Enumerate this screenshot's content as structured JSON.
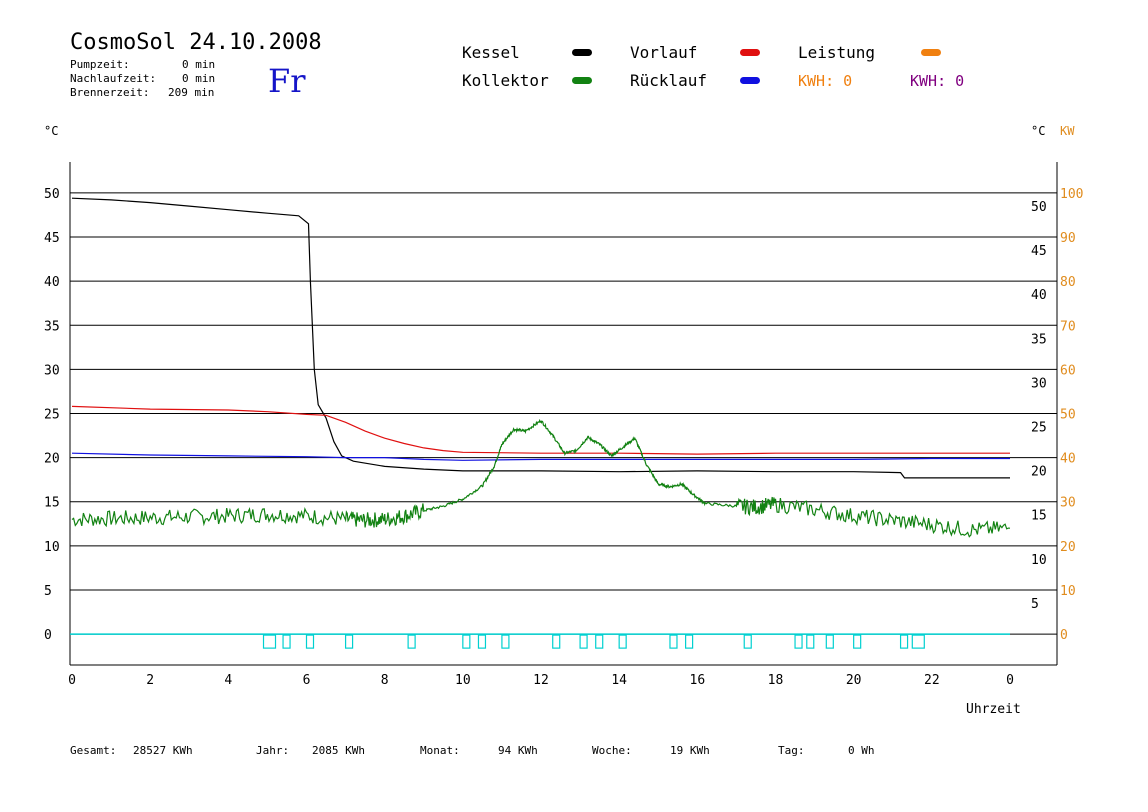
{
  "header": {
    "title": "CosmoSol 24.10.2008",
    "pump_label": "Pumpzeit:",
    "pump_value": "0 min",
    "nachlauf_label": "Nachlaufzeit:",
    "nachlauf_value": "0 min",
    "brenner_label": "Brennerzeit:",
    "brenner_value": "209 min",
    "weekday": "Fr"
  },
  "legend": {
    "kessel": "Kessel",
    "kollektor": "Kollektor",
    "vorlauf": "Vorlauf",
    "ruecklauf": "Rücklauf",
    "leistung": "Leistung",
    "kwh_a": "KWH: 0",
    "kwh_b": "KWH: 0"
  },
  "colors": {
    "kessel": "#000000",
    "vorlauf": "#e01010",
    "kollektor": "#128212",
    "ruecklauf": "#1010e0",
    "leistung": "#f08010",
    "kwh_b": "#800080",
    "pump": "#00d0d0",
    "kw_axis": "#e08c1e"
  },
  "footer": {
    "gesamt_label": "Gesamt:",
    "gesamt_value": "28527 KWh",
    "jahr_label": "Jahr:",
    "jahr_value": "2085 KWh",
    "monat_label": "Monat:",
    "monat_value": "94 KWh",
    "woche_label": "Woche:",
    "woche_value": "19 KWh",
    "tag_label": "Tag:",
    "tag_value": "0 Wh"
  },
  "chart_data": {
    "type": "line",
    "ylabel_left": "°C",
    "ylabel_right": "°C",
    "ylabel_right2": "KW",
    "xlabel": "Uhrzeit",
    "xlim": [
      0,
      24
    ],
    "ylim": [
      -3.5,
      53.5
    ],
    "y2lim": [
      -7,
      107
    ],
    "x_ticks": [
      "0",
      "2",
      "4",
      "6",
      "8",
      "10",
      "12",
      "14",
      "16",
      "18",
      "20",
      "22",
      "0"
    ],
    "y_ticks_left": [
      "50",
      "45",
      "40",
      "35",
      "30",
      "25",
      "20",
      "15",
      "10",
      "5",
      "0"
    ],
    "y_ticks_right": [
      "50",
      "45",
      "40",
      "35",
      "30",
      "25",
      "20",
      "15",
      "10",
      "5"
    ],
    "y_ticks_kw": [
      "100",
      "90",
      "80",
      "70",
      "60",
      "50",
      "40",
      "30",
      "20",
      "10",
      "0"
    ],
    "grid": true,
    "series": [
      {
        "name": "Kessel",
        "color": "#000000",
        "x": [
          0,
          1,
          2,
          3,
          4,
          5,
          5.8,
          6.05,
          6.1,
          6.2,
          6.3,
          6.5,
          6.7,
          6.9,
          7.2,
          8,
          9,
          10,
          12,
          14,
          16,
          18,
          20,
          21.2,
          21.3,
          24
        ],
        "y": [
          49.4,
          49.2,
          48.9,
          48.5,
          48.1,
          47.7,
          47.4,
          46.5,
          40,
          30,
          26,
          24.5,
          21.8,
          20.2,
          19.6,
          19.0,
          18.7,
          18.5,
          18.5,
          18.4,
          18.5,
          18.4,
          18.4,
          18.3,
          17.7,
          17.7
        ]
      },
      {
        "name": "Vorlauf",
        "color": "#e01010",
        "x": [
          0,
          2,
          4,
          5,
          6,
          6.5,
          7,
          7.5,
          8,
          8.5,
          9,
          9.5,
          10,
          12,
          14,
          16,
          18,
          20,
          22,
          24
        ],
        "y": [
          25.8,
          25.5,
          25.4,
          25.2,
          24.9,
          24.8,
          24.0,
          23.0,
          22.2,
          21.6,
          21.1,
          20.8,
          20.6,
          20.5,
          20.5,
          20.4,
          20.5,
          20.5,
          20.5,
          20.5
        ]
      },
      {
        "name": "Rücklauf",
        "color": "#1010e0",
        "x": [
          0,
          2,
          4,
          6,
          7,
          8,
          9,
          10,
          12,
          14,
          16,
          18,
          20,
          22,
          24
        ],
        "y": [
          20.5,
          20.3,
          20.2,
          20.1,
          20.0,
          20.0,
          19.8,
          19.7,
          19.8,
          19.8,
          19.8,
          19.8,
          19.8,
          19.9,
          19.9
        ]
      },
      {
        "name": "Kollektor",
        "color": "#128212",
        "x": [
          0,
          1,
          2,
          3,
          4,
          5,
          6,
          7,
          7.5,
          8,
          8.5,
          9,
          9.5,
          10,
          10.5,
          10.8,
          11,
          11.3,
          11.6,
          12,
          12.3,
          12.6,
          12.9,
          13.2,
          13.5,
          13.8,
          14.1,
          14.4,
          14.7,
          15,
          15.3,
          15.6,
          15.9,
          16.2,
          17,
          17.5,
          18,
          19,
          20,
          21,
          22,
          23,
          24
        ],
        "y": [
          13.0,
          13.1,
          13.2,
          13.3,
          13.4,
          13.6,
          13.4,
          13.0,
          12.9,
          13.0,
          13.4,
          14.0,
          14.5,
          15.3,
          16.8,
          19.0,
          21.5,
          23.2,
          23.0,
          24.2,
          22.5,
          20.5,
          20.8,
          22.3,
          21.5,
          20.2,
          21.2,
          22.2,
          19.2,
          17.0,
          16.7,
          17.0,
          15.8,
          14.8,
          14.5,
          14.4,
          14.7,
          14.1,
          13.4,
          12.9,
          12.4,
          11.8,
          12.0
        ]
      },
      {
        "name": "Pumpe",
        "color": "#00d0d0",
        "x": [
          4.9,
          5.4,
          6.0,
          7.0,
          8.6,
          10.0,
          10.4,
          11.0,
          12.3,
          13.0,
          13.4,
          14.0,
          15.3,
          15.7,
          17.2,
          18.5,
          18.8,
          19.3,
          20.0,
          21.2,
          21.5
        ],
        "y": [
          0,
          0,
          0,
          0,
          0,
          0,
          0,
          0,
          0,
          0,
          0,
          0,
          0,
          0,
          0,
          0,
          0,
          0,
          0,
          0,
          0
        ]
      }
    ]
  }
}
